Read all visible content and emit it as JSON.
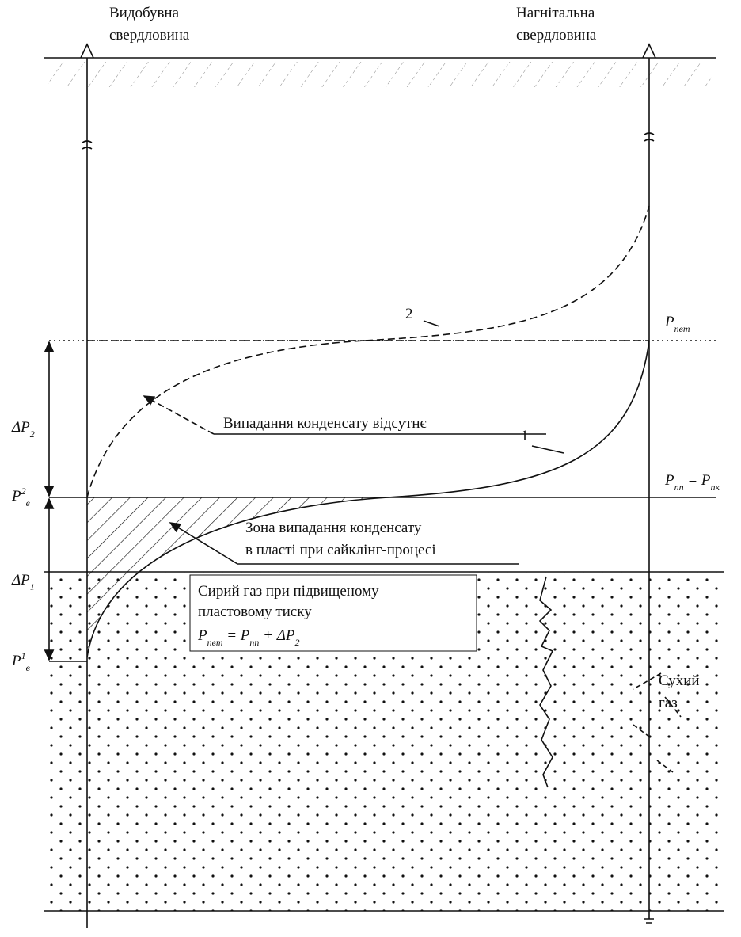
{
  "wells": [
    {
      "label": [
        "Видобувна",
        "свердловина"
      ]
    },
    {
      "label": [
        "Нагнітальна",
        "свердловина"
      ]
    }
  ],
  "curves": [
    {
      "label": "1"
    },
    {
      "label": "2"
    }
  ],
  "pressure_labels": {
    "top_right": [
      {
        "text": "P"
      },
      {
        "text": "пвт",
        "style": "sub"
      }
    ],
    "middle_right": [
      {
        "text": "P"
      },
      {
        "text": "пп",
        "style": "sub"
      },
      {
        "text": " = P"
      },
      {
        "text": "пк",
        "style": "sub"
      }
    ],
    "delta_2": [
      {
        "text": "ΔP"
      },
      {
        "text": "2",
        "style": "sub"
      }
    ],
    "p_v_2": [
      {
        "text": "P"
      },
      {
        "text": "2",
        "style": "sup"
      },
      {
        "text": "в",
        "style": "sub"
      }
    ],
    "delta_1": [
      {
        "text": "ΔP"
      },
      {
        "text": "1",
        "style": "sub"
      }
    ],
    "p_v_1": [
      {
        "text": "P"
      },
      {
        "text": "1",
        "style": "sup"
      },
      {
        "text": "в",
        "style": "sub"
      }
    ]
  },
  "annotations": {
    "no_condensate": "Випадання конденсату відсутнє",
    "condensate_zone": [
      "Зона випадання конденсату",
      "в пласті при сайклінг-процесі"
    ],
    "raw_gas": [
      "Сирий газ при підвищеному",
      "пластовому тиску"
    ],
    "raw_gas_formula": [
      {
        "text": "P"
      },
      {
        "text": "пвт",
        "style": "sub"
      },
      {
        "text": " = P"
      },
      {
        "text": "пп",
        "style": "sub"
      },
      {
        "text": " + ΔP"
      },
      {
        "text": "2",
        "style": "sub"
      }
    ],
    "dry_gas": [
      "Сухий",
      "газ"
    ]
  }
}
